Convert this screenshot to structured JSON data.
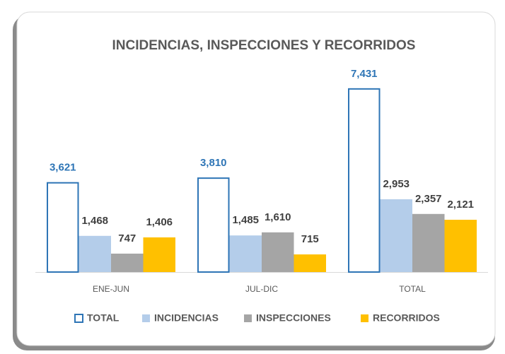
{
  "chart_data": {
    "type": "bar",
    "title": "INCIDENCIAS, INSPECCIONES Y RECORRIDOS",
    "categories": [
      "ENE-JUN",
      "JUL-DIC",
      "TOTAL"
    ],
    "series": [
      {
        "name": "TOTAL",
        "color": "#2e75b6",
        "values": [
          3621,
          3810,
          7431
        ],
        "value_labels": [
          "3,621",
          "3,810",
          "7,431"
        ]
      },
      {
        "name": "INCIDENCIAS",
        "color": "#b4cdea",
        "values": [
          1468,
          1485,
          2953
        ],
        "value_labels": [
          "1,468",
          "1,485",
          "2,953"
        ]
      },
      {
        "name": "INSPECCIONES",
        "color": "#a5a5a5",
        "values": [
          747,
          1610,
          2357
        ],
        "value_labels": [
          "747",
          "1,610",
          "2,357"
        ]
      },
      {
        "name": "RECORRIDOS",
        "color": "#ffc000",
        "values": [
          1406,
          715,
          2121
        ],
        "value_labels": [
          "1,406",
          "715",
          "2,121"
        ]
      }
    ],
    "ylim": [
      0,
      8000
    ],
    "legend": "bottom"
  }
}
